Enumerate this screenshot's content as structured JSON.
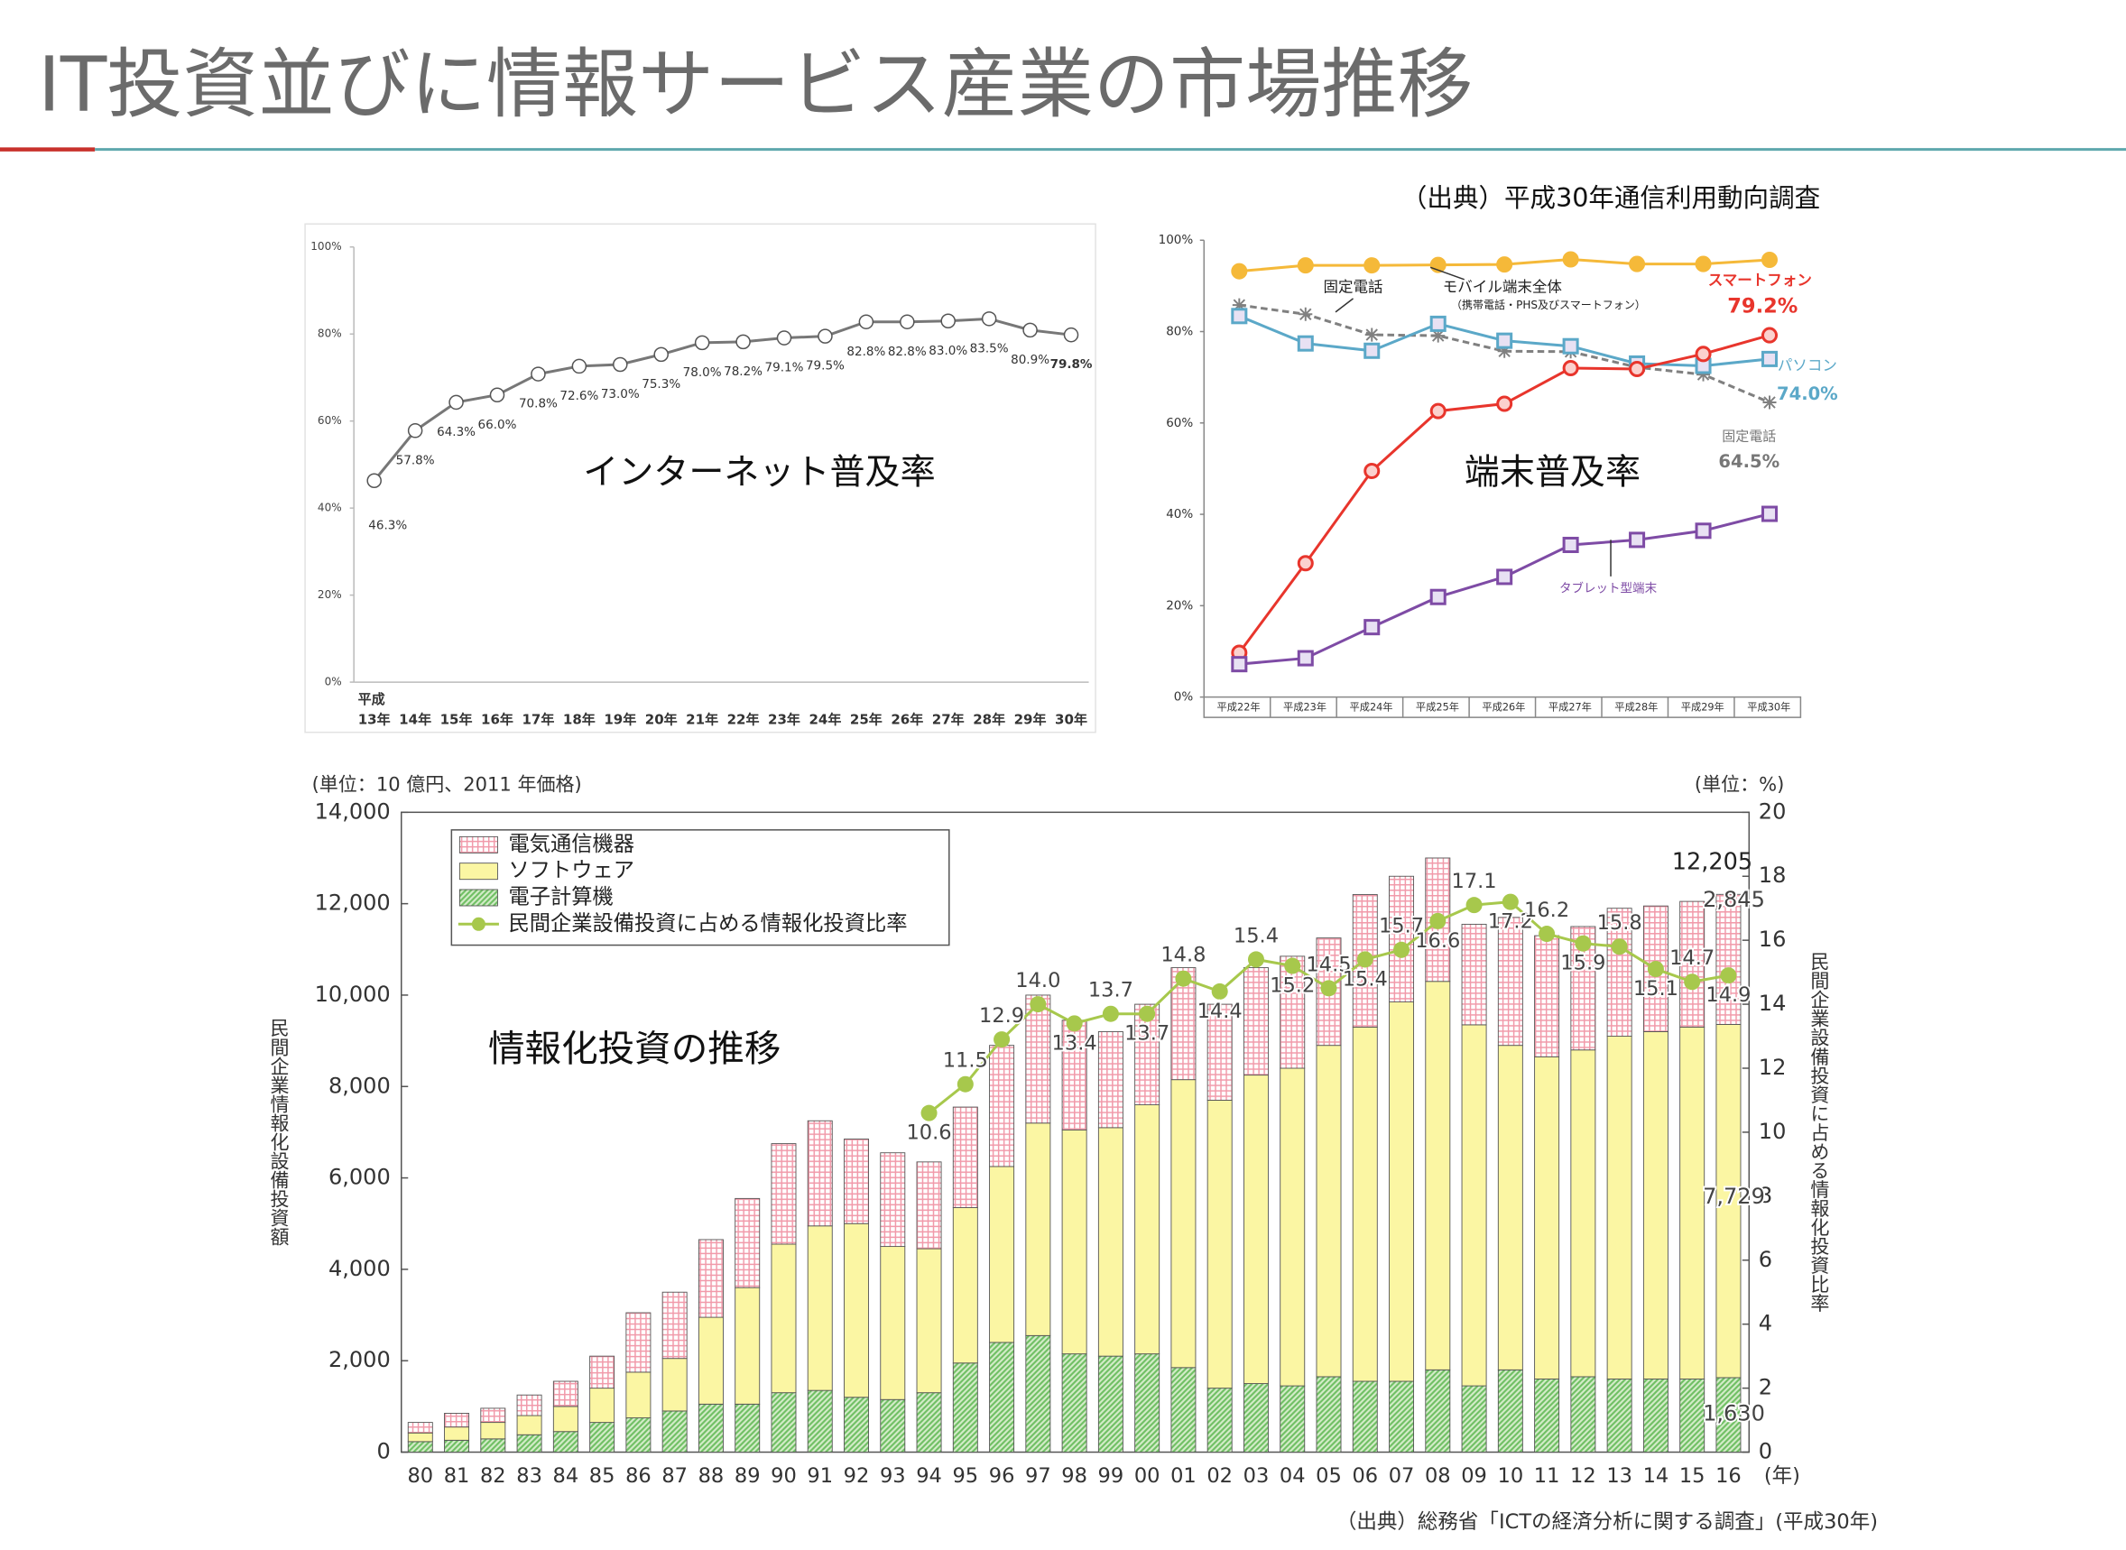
{
  "title": "IT投資並びに情報サービス産業の市場推移",
  "chart_data": [
    {
      "type": "line",
      "title": "インターネット普及率",
      "era": "平成",
      "categories": [
        "13年",
        "14年",
        "15年",
        "16年",
        "17年",
        "18年",
        "19年",
        "20年",
        "21年",
        "22年",
        "23年",
        "24年",
        "25年",
        "26年",
        "27年",
        "28年",
        "29年",
        "30年"
      ],
      "values": [
        46.3,
        57.8,
        64.3,
        66.0,
        70.8,
        72.6,
        73.0,
        75.3,
        78.0,
        78.2,
        79.1,
        79.5,
        82.8,
        82.8,
        83.0,
        83.5,
        80.9,
        79.8
      ],
      "value_labels": [
        "46.3%",
        "57.8%",
        "64.3%",
        "66.0%",
        "70.8%",
        "72.6%",
        "73.0%",
        "75.3%",
        "78.0%",
        "78.2%",
        "79.1%",
        "79.5%",
        "82.8%",
        "82.8%",
        "83.0%",
        "83.5%",
        "80.9%",
        "79.8%"
      ],
      "color": "#777777",
      "marker": "open-circle",
      "ylim": [
        0,
        100
      ],
      "yticks": [
        {
          "value": 0,
          "label": "0%"
        },
        {
          "value": 20,
          "label": "20%"
        },
        {
          "value": 40,
          "label": "40%"
        },
        {
          "value": 60,
          "label": "60%"
        },
        {
          "value": 80,
          "label": "80%"
        },
        {
          "value": 100,
          "label": "100%"
        }
      ],
      "grid": false
    },
    {
      "type": "line",
      "title": "端末普及率",
      "source": "（出典）平成30年通信利用動向調査",
      "categories": [
        "平成22年",
        "平成23年",
        "平成24年",
        "平成25年",
        "平成26年",
        "平成27年",
        "平成28年",
        "平成29年",
        "平成30年"
      ],
      "series": [
        {
          "name": "モバイル端末全体",
          "color": "#f5b939",
          "marker": "circle",
          "values": [
            93.2,
            94.5,
            94.5,
            94.6,
            94.7,
            95.8,
            94.8,
            94.8,
            95.7
          ]
        },
        {
          "name": "固定電話",
          "color": "#808080",
          "marker": "asterisk",
          "dash": true,
          "values": [
            85.8,
            83.8,
            79.3,
            79.1,
            75.7,
            75.6,
            72.2,
            70.6,
            64.5
          ]
        },
        {
          "name": "パソコン",
          "color": "#5ba8c8",
          "marker": "square",
          "values": [
            83.4,
            77.4,
            75.8,
            81.7,
            78.0,
            76.8,
            73.0,
            72.5,
            74.0
          ]
        },
        {
          "name": "スマートフォン",
          "color": "#e8352c",
          "marker": "circle",
          "values": [
            9.7,
            29.3,
            49.5,
            62.6,
            64.2,
            72.0,
            71.8,
            75.1,
            79.2
          ]
        },
        {
          "name": "タブレット型端末",
          "color": "#7e4ba5",
          "marker": "square",
          "values": [
            7.2,
            8.5,
            15.3,
            21.9,
            26.3,
            33.3,
            34.4,
            36.4,
            40.1
          ]
        }
      ],
      "annotations": [
        "固定電話",
        "モバイル端末全体",
        "（携帯電話・PHS及びスマートフォン）",
        "スマートフォン",
        "79.2%",
        "パソコン",
        "74.0%",
        "固定電話",
        "64.5%",
        "タブレット型端末"
      ],
      "ylim": [
        0,
        100
      ],
      "yticks": [
        {
          "value": 0,
          "label": "0%"
        },
        {
          "value": 20,
          "label": "20%"
        },
        {
          "value": 40,
          "label": "40%"
        },
        {
          "value": 60,
          "label": "60%"
        },
        {
          "value": 80,
          "label": "80%"
        },
        {
          "value": 100,
          "label": "100%"
        }
      ],
      "grid": false
    },
    {
      "type": "bar",
      "stacked": true,
      "title": "情報化投資の推移",
      "unit_left": "(単位：10 億円、2011 年価格)",
      "unit_right": "(単位：%)",
      "x_unit": "(年)",
      "ylabel": "民間企業情報化設備投資額",
      "y2label": "民間企業設備投資に占める情報化投資比率",
      "source": "（出典）総務省「ICTの経済分析に関する調査」(平成30年)",
      "categories": [
        "80",
        "81",
        "82",
        "83",
        "84",
        "85",
        "86",
        "87",
        "88",
        "89",
        "90",
        "91",
        "92",
        "93",
        "94",
        "95",
        "96",
        "97",
        "98",
        "99",
        "00",
        "01",
        "02",
        "03",
        "04",
        "05",
        "06",
        "07",
        "08",
        "09",
        "10",
        "11",
        "12",
        "13",
        "14",
        "15",
        "16"
      ],
      "series": [
        {
          "name": "電気通信機器",
          "color": "#f19aaa",
          "values": [
            230,
            300,
            310,
            450,
            550,
            700,
            1300,
            1450,
            1700,
            1950,
            2200,
            2300,
            1850,
            2050,
            1900,
            2200,
            2650,
            2800,
            2400,
            2100,
            2200,
            2450,
            2100,
            2350,
            2450,
            2350,
            2900,
            2750,
            2700,
            2200,
            2800,
            2650,
            2700,
            2800,
            2750,
            2750,
            2845
          ],
          "value_labels": [
            null,
            null,
            null,
            null,
            null,
            null,
            null,
            null,
            null,
            null,
            null,
            null,
            null,
            null,
            null,
            null,
            null,
            null,
            null,
            null,
            null,
            null,
            null,
            null,
            null,
            null,
            null,
            null,
            null,
            null,
            null,
            null,
            null,
            null,
            null,
            null,
            "2,845"
          ]
        },
        {
          "name": "ソフトウェア",
          "color": "#fbf6a3",
          "values": [
            190,
            290,
            360,
            420,
            550,
            750,
            1000,
            1150,
            1900,
            2550,
            3250,
            3600,
            3800,
            3350,
            3150,
            3400,
            3850,
            4650,
            4900,
            5000,
            5450,
            6300,
            6300,
            6750,
            6950,
            7250,
            7750,
            8300,
            8500,
            7900,
            7100,
            7050,
            7150,
            7500,
            7600,
            7700,
            7729
          ],
          "value_labels": [
            null,
            null,
            null,
            null,
            null,
            null,
            null,
            null,
            null,
            null,
            null,
            null,
            null,
            null,
            null,
            null,
            null,
            null,
            null,
            null,
            null,
            null,
            null,
            null,
            null,
            null,
            null,
            null,
            null,
            null,
            null,
            null,
            null,
            null,
            null,
            null,
            "7,729"
          ]
        },
        {
          "name": "電子計算機",
          "color": "#6fbf63",
          "values": [
            230,
            260,
            290,
            380,
            450,
            650,
            750,
            900,
            1050,
            1050,
            1300,
            1350,
            1200,
            1150,
            1300,
            1950,
            2400,
            2550,
            2150,
            2100,
            2150,
            1850,
            1400,
            1500,
            1450,
            1650,
            1550,
            1550,
            1800,
            1450,
            1800,
            1600,
            1650,
            1600,
            1600,
            1600,
            1630
          ],
          "value_labels": [
            null,
            null,
            null,
            null,
            null,
            null,
            null,
            null,
            null,
            null,
            null,
            null,
            null,
            null,
            null,
            null,
            null,
            null,
            null,
            null,
            null,
            null,
            null,
            null,
            null,
            null,
            null,
            null,
            null,
            null,
            null,
            null,
            null,
            null,
            null,
            null,
            "1,630"
          ]
        },
        {
          "name": "民間企業設備投資に占める情報化投資比率",
          "type": "line",
          "axis": "y2",
          "color": "#a7c84c",
          "values": [
            null,
            null,
            null,
            null,
            null,
            null,
            null,
            null,
            null,
            null,
            null,
            null,
            null,
            null,
            10.6,
            11.5,
            12.9,
            14.0,
            13.4,
            13.7,
            13.7,
            14.8,
            14.4,
            15.4,
            15.2,
            14.5,
            15.4,
            15.7,
            16.6,
            17.1,
            17.2,
            16.2,
            15.9,
            15.8,
            15.1,
            14.7,
            14.9
          ],
          "value_labels": [
            null,
            null,
            null,
            null,
            null,
            null,
            null,
            null,
            null,
            null,
            null,
            null,
            null,
            null,
            "10.6",
            "11.5",
            "12.9",
            "14.0",
            "13.4",
            "13.7",
            "13.7",
            "14.8",
            "14.4",
            "15.4",
            "15.2",
            "14.5",
            "15.4",
            "15.7",
            "16.6",
            "17.1",
            "17.2",
            "16.2",
            "15.9",
            "15.8",
            "15.1",
            "14.7",
            "14.9"
          ]
        }
      ],
      "total_label": {
        "value": 12205,
        "label": "12,205"
      },
      "ylim": [
        0,
        14000
      ],
      "yticks": [
        0,
        {
          "value": 2000,
          "label": "2,000"
        },
        {
          "value": 4000,
          "label": "4,000"
        },
        {
          "value": 6000,
          "label": "6,000"
        },
        {
          "value": 8000,
          "label": "8,000"
        },
        {
          "value": 10000,
          "label": "10,000"
        },
        {
          "value": 12000,
          "label": "12,000"
        },
        {
          "value": 14000,
          "label": "14,000"
        }
      ],
      "y2lim": [
        0,
        20
      ],
      "y2ticks": [
        0,
        2,
        4,
        6,
        8,
        10,
        12,
        14,
        16,
        18,
        20
      ],
      "legend": "upper left",
      "grid": false
    }
  ]
}
